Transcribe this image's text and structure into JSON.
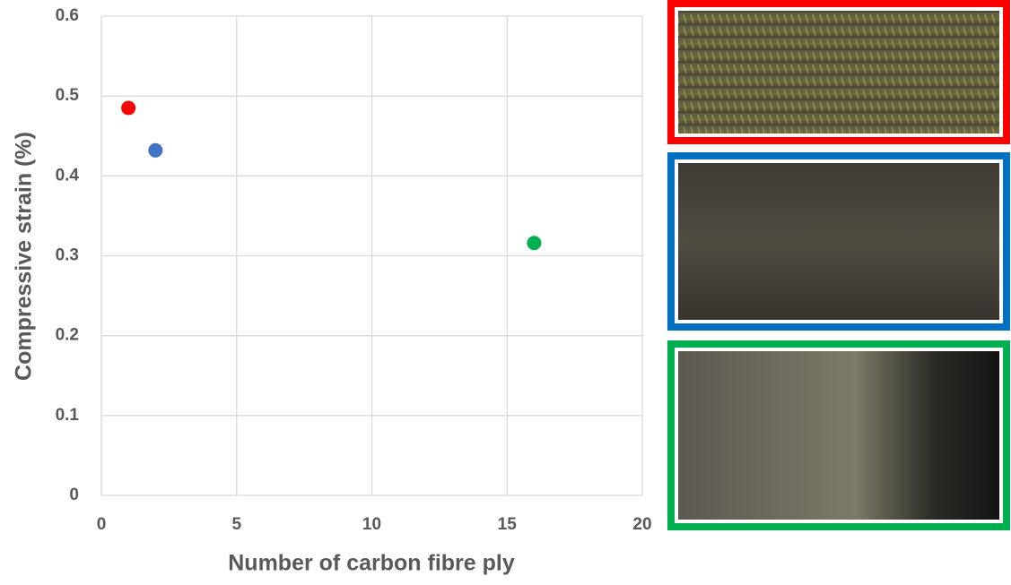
{
  "chart_data": {
    "type": "scatter",
    "x_label": "Number of carbon fibre ply",
    "y_label": "Compressive strain (%)",
    "x": [
      1,
      2,
      16
    ],
    "values": [
      0.485,
      0.432,
      0.316
    ],
    "colors": [
      "#ff0000",
      "#4472c4",
      "#00b050"
    ],
    "xlim": [
      0,
      20
    ],
    "xticks": [
      0,
      5,
      10,
      15,
      20
    ],
    "ylim": [
      0,
      0.6
    ],
    "yticks": [
      0,
      0.1,
      0.2,
      0.3,
      0.4,
      0.5,
      0.6
    ],
    "grid": true
  }
}
